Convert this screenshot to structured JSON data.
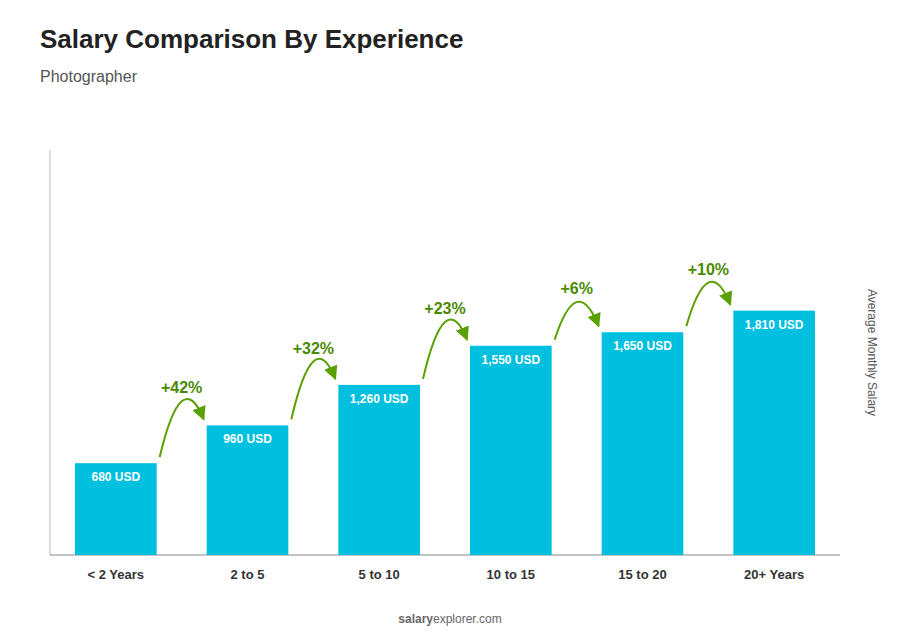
{
  "chart_data": {
    "type": "bar",
    "title": "Salary Comparison By Experience",
    "subtitle": "Photographer",
    "y_label": "Average Monthly Salary",
    "categories": [
      "< 2 Years",
      "2 to 5",
      "5 to 10",
      "10 to 15",
      "15 to 20",
      "20+ Years"
    ],
    "values": [
      680,
      960,
      1260,
      1550,
      1650,
      1810
    ],
    "value_labels": [
      "680 USD",
      "960 USD",
      "1,260 USD",
      "1,550 USD",
      "1,650 USD",
      "1,810 USD"
    ],
    "data_labels": true,
    "color": "#00bfdf",
    "annotations": [
      "+42%",
      "+32%",
      "+23%",
      "+6%",
      "+10%"
    ],
    "watermark": [
      "salary",
      "explorer.com"
    ],
    "ylim": [
      0,
      3000
    ],
    "grid": false,
    "tick_labels": "x"
  }
}
